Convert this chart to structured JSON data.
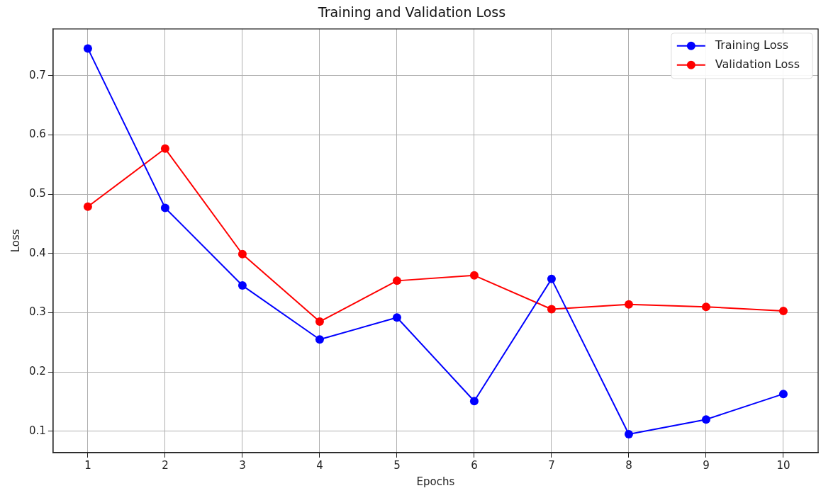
{
  "chart_data": {
    "type": "line",
    "title": "Training and Validation Loss",
    "xlabel": "Epochs",
    "ylabel": "Loss",
    "x": [
      1,
      2,
      3,
      4,
      5,
      6,
      7,
      8,
      9,
      10
    ],
    "series": [
      {
        "name": "Training Loss",
        "color": "#0000ff",
        "values": [
          0.746,
          0.477,
          0.346,
          0.255,
          0.292,
          0.151,
          0.357,
          0.095,
          0.12,
          0.163
        ]
      },
      {
        "name": "Validation Loss",
        "color": "#ff0000",
        "values": [
          0.479,
          0.577,
          0.399,
          0.285,
          0.354,
          0.363,
          0.306,
          0.314,
          0.31,
          0.303
        ]
      }
    ],
    "xlim": [
      0.55,
      10.45
    ],
    "xticks": [
      1,
      2,
      3,
      4,
      5,
      6,
      7,
      8,
      9,
      10
    ],
    "ylim": [
      0.064,
      0.779
    ],
    "yticks": [
      0.1,
      0.2,
      0.3,
      0.4,
      0.5,
      0.6,
      0.7
    ],
    "grid": true,
    "legend": "top right",
    "marker": "circle",
    "line_style": "solid"
  }
}
